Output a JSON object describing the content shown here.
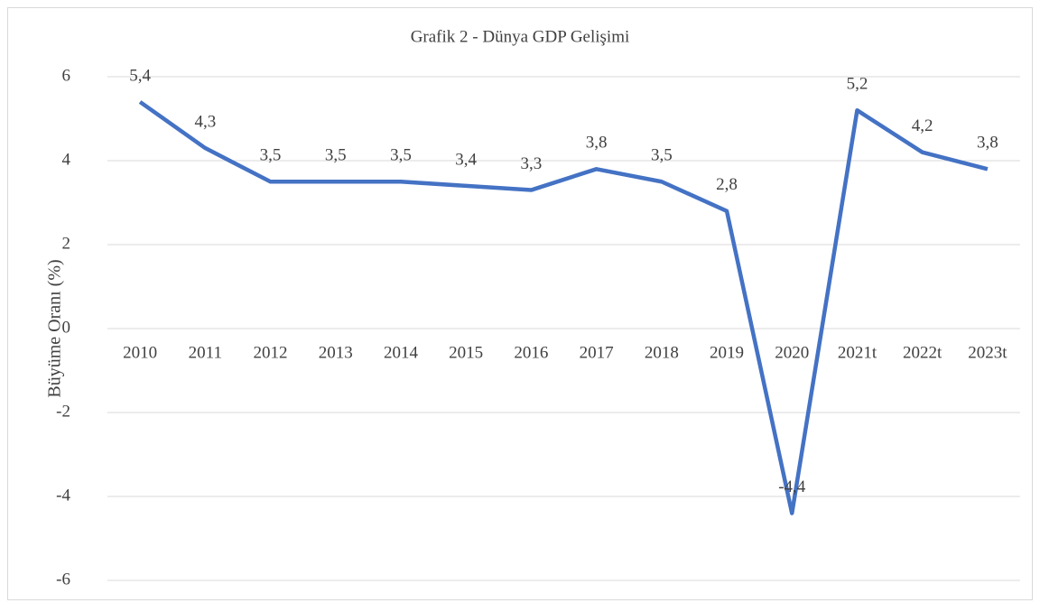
{
  "chart_data": {
    "type": "line",
    "title": "Grafik 2 - Dünya GDP Gelişimi",
    "ylabel": "Büyüme Oranı (%)",
    "categories": [
      "2010",
      "2011",
      "2012",
      "2013",
      "2014",
      "2015",
      "2016",
      "2017",
      "2018",
      "2019",
      "2020",
      "2021t",
      "2022t",
      "2023t"
    ],
    "series": [
      {
        "name": "Büyüme Oranı",
        "color": "#4472c4",
        "values": [
          5.4,
          4.3,
          3.5,
          3.5,
          3.5,
          3.4,
          3.3,
          3.8,
          3.5,
          2.8,
          -4.4,
          5.2,
          4.2,
          3.8
        ],
        "value_labels": [
          "5,4",
          "4,3",
          "3,5",
          "3,5",
          "3,5",
          "3,4",
          "3,3",
          "3,8",
          "3,5",
          "2,8",
          "-4,4",
          "5,2",
          "4,2",
          "3,8"
        ]
      }
    ],
    "ylim": [
      -6,
      6
    ],
    "yticks": [
      6,
      4,
      2,
      0,
      -2,
      -4,
      -6
    ],
    "grid": true
  }
}
